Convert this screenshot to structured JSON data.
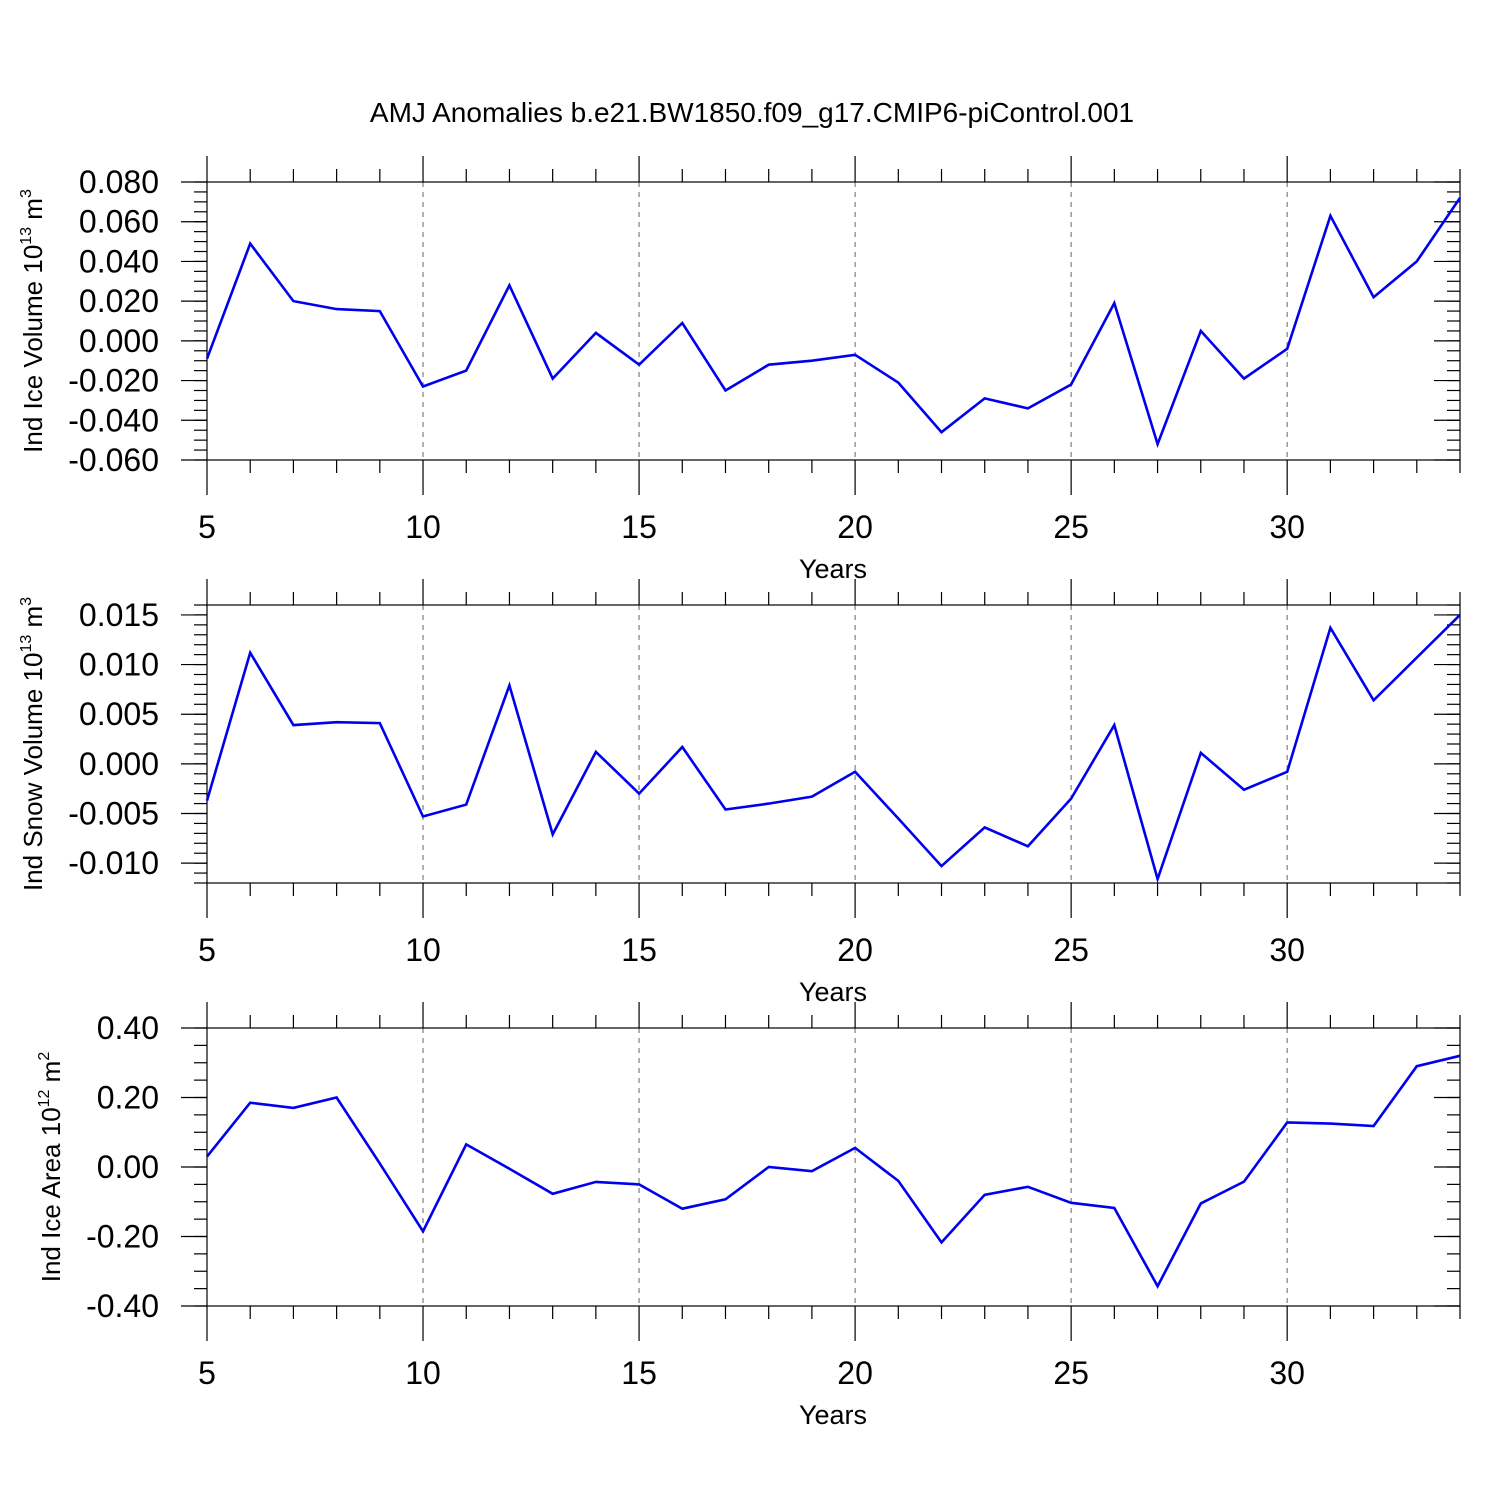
{
  "title": "AMJ Anomalies b.e21.BW1850.f09_g17.CMIP6-piControl.001",
  "series_color": "#0000ee",
  "chart_data": [
    {
      "type": "line",
      "title": "",
      "xlabel": "Years",
      "ylabel_main": "Ind Ice Volume 10",
      "ylabel_sup": "13",
      "ylabel_unit": " m",
      "ylabel_unit_sup": "3",
      "xlim": [
        5,
        34
      ],
      "ylim": [
        -0.06,
        0.08
      ],
      "grid": "x-major-dashed",
      "xticks": [
        5,
        10,
        15,
        20,
        25,
        30
      ],
      "xtick_labels": [
        "5",
        "10",
        "15",
        "20",
        "25",
        "30"
      ],
      "yticks": [
        -0.06,
        -0.04,
        -0.02,
        0.0,
        0.02,
        0.04,
        0.06,
        0.08
      ],
      "ytick_labels": [
        "-0.060",
        "-0.040",
        "-0.020",
        "0.000",
        "0.020",
        "0.040",
        "0.060",
        "0.080"
      ],
      "y_minor_step": 0.005,
      "x": [
        5,
        6,
        7,
        8,
        9,
        10,
        11,
        12,
        13,
        14,
        15,
        16,
        17,
        18,
        19,
        20,
        21,
        22,
        23,
        24,
        25,
        26,
        27,
        28,
        29,
        30,
        31,
        32,
        33,
        34
      ],
      "values": [
        -0.009,
        0.049,
        0.02,
        0.016,
        0.015,
        -0.023,
        -0.015,
        0.028,
        -0.019,
        0.004,
        -0.012,
        0.009,
        -0.025,
        -0.012,
        -0.01,
        -0.007,
        -0.021,
        -0.046,
        -0.029,
        -0.034,
        -0.022,
        0.019,
        -0.052,
        0.005,
        -0.019,
        -0.004,
        0.063,
        0.022,
        0.04,
        0.072
      ]
    },
    {
      "type": "line",
      "title": "",
      "xlabel": "Years",
      "ylabel_main": "Ind Snow Volume 10",
      "ylabel_sup": "13",
      "ylabel_unit": " m",
      "ylabel_unit_sup": "3",
      "xlim": [
        5,
        34
      ],
      "ylim": [
        -0.012,
        0.016
      ],
      "grid": "x-major-dashed",
      "xticks": [
        5,
        10,
        15,
        20,
        25,
        30
      ],
      "xtick_labels": [
        "5",
        "10",
        "15",
        "20",
        "25",
        "30"
      ],
      "yticks": [
        -0.01,
        -0.005,
        0.0,
        0.005,
        0.01,
        0.015
      ],
      "ytick_labels": [
        "-0.010",
        "-0.005",
        "0.000",
        "0.005",
        "0.010",
        "0.015"
      ],
      "y_minor_step": 0.001,
      "x": [
        5,
        6,
        7,
        8,
        9,
        10,
        11,
        12,
        13,
        14,
        15,
        16,
        17,
        18,
        19,
        20,
        21,
        22,
        23,
        24,
        25,
        26,
        27,
        28,
        29,
        30,
        31,
        32,
        33,
        34
      ],
      "values": [
        -0.0037,
        0.0112,
        0.0039,
        0.0042,
        0.0041,
        -0.0053,
        -0.0041,
        0.0079,
        -0.0071,
        0.0012,
        -0.003,
        0.0017,
        -0.0046,
        -0.004,
        -0.0033,
        -0.0008,
        -0.0055,
        -0.0103,
        -0.0064,
        -0.0083,
        -0.0035,
        0.0039,
        -0.0116,
        0.0011,
        -0.0026,
        -0.0008,
        0.0137,
        0.0064,
        0.0107,
        0.015
      ]
    },
    {
      "type": "line",
      "title": "",
      "xlabel": "Years",
      "ylabel_main": "Ind Ice Area 10",
      "ylabel_sup": "12",
      "ylabel_unit": " m",
      "ylabel_unit_sup": "2",
      "xlim": [
        5,
        34
      ],
      "ylim": [
        -0.4,
        0.4
      ],
      "grid": "x-major-dashed",
      "xticks": [
        5,
        10,
        15,
        20,
        25,
        30
      ],
      "xtick_labels": [
        "5",
        "10",
        "15",
        "20",
        "25",
        "30"
      ],
      "yticks": [
        -0.4,
        -0.2,
        0.0,
        0.2,
        0.4
      ],
      "ytick_labels": [
        "-0.40",
        "-0.20",
        "0.00",
        "0.20",
        "0.40"
      ],
      "y_minor_step": 0.05,
      "x": [
        5,
        6,
        7,
        8,
        9,
        10,
        11,
        12,
        13,
        14,
        15,
        16,
        17,
        18,
        19,
        20,
        21,
        22,
        23,
        24,
        25,
        26,
        27,
        28,
        29,
        30,
        31,
        32,
        33,
        34
      ],
      "values": [
        0.03,
        0.185,
        0.17,
        0.2,
        0.01,
        -0.185,
        0.065,
        -0.005,
        -0.077,
        -0.043,
        -0.05,
        -0.12,
        -0.093,
        0.0,
        -0.012,
        0.055,
        -0.04,
        -0.217,
        -0.08,
        -0.057,
        -0.103,
        -0.118,
        -0.343,
        -0.105,
        -0.042,
        0.128,
        0.125,
        0.118,
        0.29,
        0.32
      ]
    }
  ]
}
